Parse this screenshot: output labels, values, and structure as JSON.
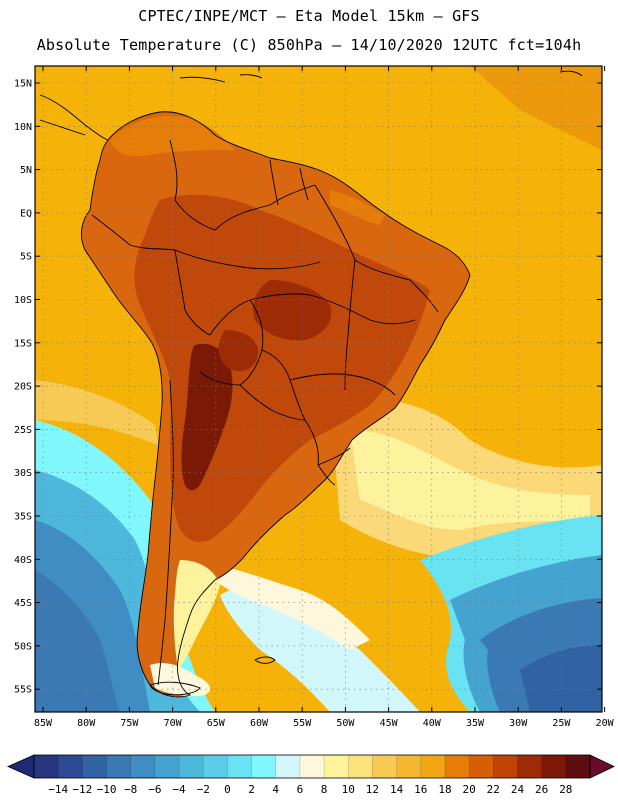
{
  "header": {
    "title_line1": "CPTEC/INPE/MCT –  Eta Model 15km – GFS",
    "title_line2": "Absolute Temperature (C) 850hPa – 14/10/2020 12UTC fct=104h"
  },
  "map": {
    "lat_labels": [
      "15N",
      "10N",
      "5N",
      "EQ",
      "5S",
      "10S",
      "15S",
      "20S",
      "25S",
      "30S",
      "35S",
      "40S",
      "45S",
      "50S",
      "55S"
    ],
    "lon_labels": [
      "85W",
      "80W",
      "75W",
      "70W",
      "65W",
      "60W",
      "55W",
      "50W",
      "45W",
      "40W",
      "35W",
      "30W",
      "25W",
      "20W"
    ],
    "ocean_color": "#f5b30a",
    "land_color": "#d8670f"
  },
  "colorbar": {
    "labels": [
      "-14",
      "-12",
      "-10",
      "-8",
      "-6",
      "-4",
      "-2",
      "0",
      "2",
      "4",
      "6",
      "8",
      "10",
      "12",
      "14",
      "16",
      "18",
      "20",
      "22",
      "24",
      "26",
      "28"
    ],
    "colors": [
      "#27367f",
      "#2c4a93",
      "#3163a4",
      "#3a79b4",
      "#3f8dc2",
      "#45a3cf",
      "#4db7dc",
      "#5bcde8",
      "#69e3f2",
      "#80f7fa",
      "#d2f7fb",
      "#fdf7dc",
      "#fdf39c",
      "#fbe27a",
      "#f6ca55",
      "#f2b630",
      "#f1a614",
      "#e67d08",
      "#d65f06",
      "#bf4406",
      "#9c2b06",
      "#7a1a06",
      "#5e0d10"
    ],
    "under_color": "#1e2a72",
    "over_color": "#6a0a2c"
  }
}
